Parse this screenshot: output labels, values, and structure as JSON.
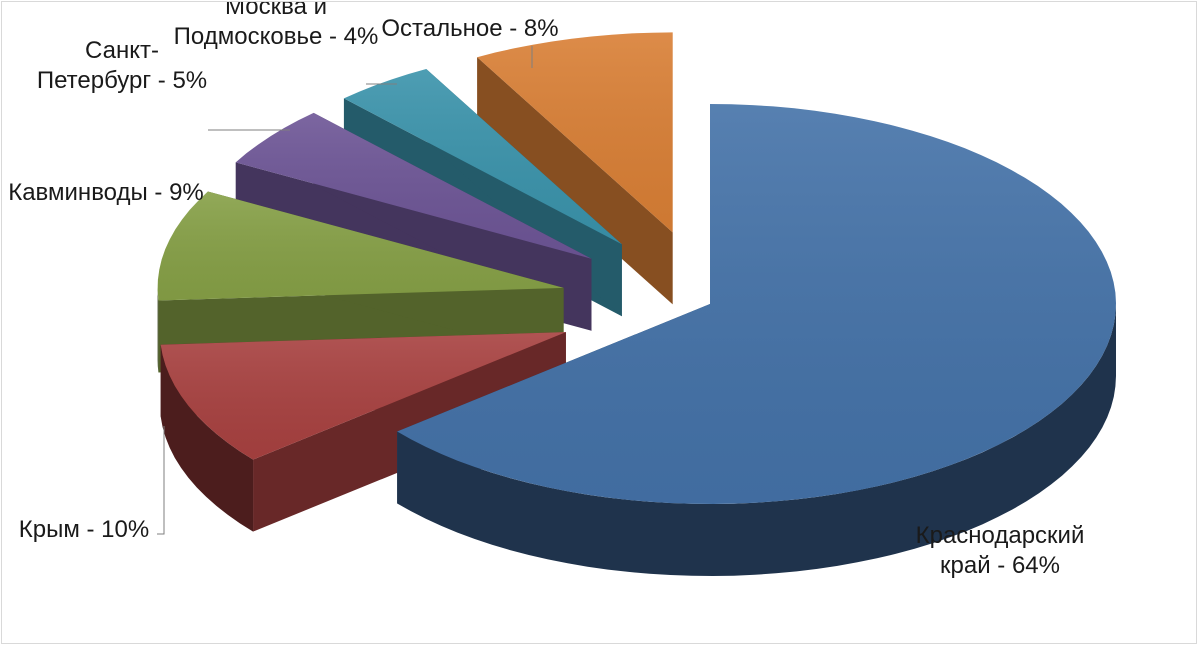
{
  "chart_data": {
    "type": "pie",
    "style": "3d-exploded",
    "slices": [
      {
        "name": "Краснодарский край",
        "value": 64,
        "color": "#4472a8",
        "label_lines": [
          "Краснодарский",
          "край - 64%"
        ]
      },
      {
        "name": "Крым",
        "value": 10,
        "color": "#a84140",
        "label_lines": [
          "Крым - 10%"
        ]
      },
      {
        "name": "Кавминводы",
        "value": 9,
        "color": "#86a046",
        "label_lines": [
          "Кавминводы - 9%"
        ]
      },
      {
        "name": "Санкт-Петербург",
        "value": 5,
        "color": "#6d5596",
        "label_lines": [
          "Санкт-",
          "Петербург - 5%"
        ]
      },
      {
        "name": "Москва и Подмосковье",
        "value": 4,
        "color": "#3a93ab",
        "label_lines": [
          "Москва и",
          "Подмосковье - 4%"
        ]
      },
      {
        "name": "Остальное",
        "value": 8,
        "color": "#d97f35",
        "label_lines": [
          "Остальное - 8%"
        ]
      }
    ],
    "legend": "none",
    "data_labels": "outside-with-leader-lines"
  }
}
